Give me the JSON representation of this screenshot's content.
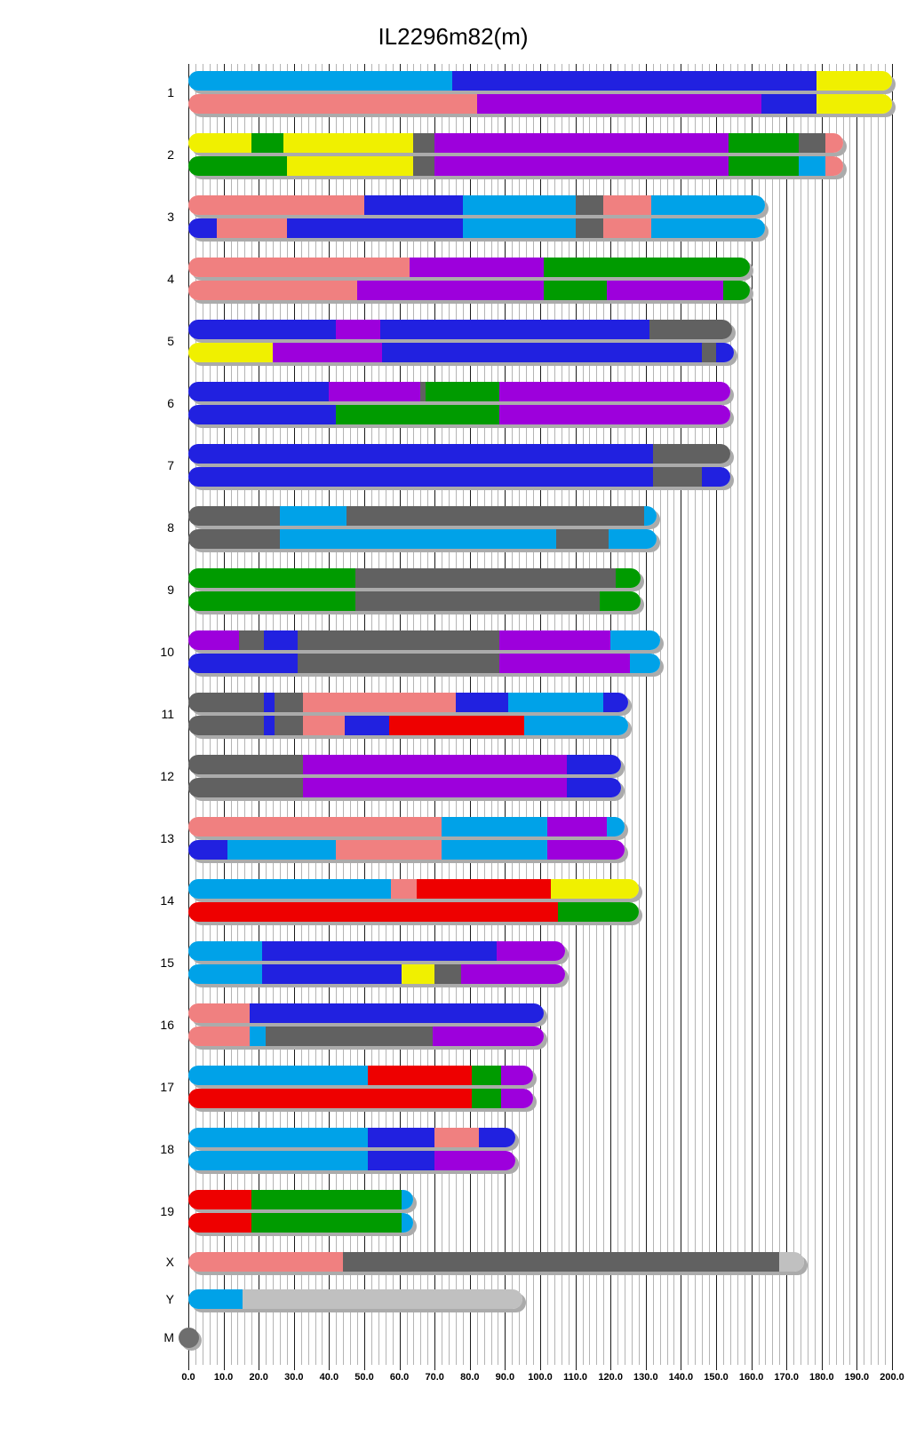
{
  "title": "IL2296m82(m)",
  "colors": {
    "cyan": "#00A2E8",
    "blue": "#2121E0",
    "purple": "#9D00DC",
    "green": "#009B00",
    "yellow": "#F0F000",
    "salmon": "#F08080",
    "red": "#EE0000",
    "gray": "#616161",
    "lightgray": "#C0C0C0",
    "mgray": "#6E6E6E",
    "gridline_minor": "#B4B4B4",
    "gridline_major": "#1A1A1A",
    "shadow": "#ABABAB"
  },
  "axis": {
    "min": 0,
    "max": 200,
    "major_step": 10,
    "minor_step": 2,
    "tick_labels": [
      "0.0",
      "10.0",
      "20.0",
      "30.0",
      "40.0",
      "50.0",
      "60.0",
      "70.0",
      "80.0",
      "90.0",
      "100.0",
      "110.0",
      "120.0",
      "130.0",
      "140.0",
      "150.0",
      "160.0",
      "170.0",
      "180.0",
      "190.0",
      "200.0"
    ]
  },
  "chart_data": {
    "type": "ideogram",
    "title": "IL2296m82(m)",
    "x_range": [
      0,
      200
    ],
    "segment_format": [
      "color",
      "from",
      "to"
    ],
    "chromosomes": [
      {
        "name": "1",
        "homologs": [
          [
            [
              "cyan",
              0,
              75
            ],
            [
              "blue",
              75,
              178.5
            ],
            [
              "yellow",
              178.5,
              200
            ]
          ],
          [
            [
              "salmon",
              0,
              82
            ],
            [
              "purple",
              82,
              163
            ],
            [
              "blue",
              163,
              178.5
            ],
            [
              "yellow",
              178.5,
              200
            ]
          ]
        ]
      },
      {
        "name": "2",
        "homologs": [
          [
            [
              "yellow",
              0,
              18
            ],
            [
              "green",
              18,
              27
            ],
            [
              "yellow",
              27,
              64
            ],
            [
              "gray",
              64,
              70
            ],
            [
              "purple",
              70,
              153.5
            ],
            [
              "green",
              153.5,
              173.5
            ],
            [
              "gray",
              173.5,
              181
            ],
            [
              "salmon",
              181,
              186
            ]
          ],
          [
            [
              "green",
              0,
              28
            ],
            [
              "yellow",
              28,
              64
            ],
            [
              "gray",
              64,
              70
            ],
            [
              "purple",
              70,
              153.5
            ],
            [
              "green",
              153.5,
              173.5
            ],
            [
              "cyan",
              173.5,
              181
            ],
            [
              "salmon",
              181,
              186
            ]
          ]
        ]
      },
      {
        "name": "3",
        "homologs": [
          [
            [
              "salmon",
              0,
              50
            ],
            [
              "blue",
              50,
              78
            ],
            [
              "cyan",
              78,
              110
            ],
            [
              "gray",
              110,
              118
            ],
            [
              "salmon",
              118,
              131.5
            ],
            [
              "cyan",
              131.5,
              164
            ]
          ],
          [
            [
              "blue",
              0,
              8
            ],
            [
              "salmon",
              8,
              28
            ],
            [
              "blue",
              28,
              78
            ],
            [
              "cyan",
              78,
              110
            ],
            [
              "gray",
              110,
              118
            ],
            [
              "salmon",
              118,
              131.5
            ],
            [
              "cyan",
              131.5,
              164
            ]
          ]
        ]
      },
      {
        "name": "4",
        "homologs": [
          [
            [
              "salmon",
              0,
              63
            ],
            [
              "purple",
              63,
              101
            ],
            [
              "green",
              101,
              159.5
            ]
          ],
          [
            [
              "salmon",
              0,
              48
            ],
            [
              "purple",
              48,
              101
            ],
            [
              "green",
              101,
              119
            ],
            [
              "purple",
              119,
              152
            ],
            [
              "green",
              152,
              159.5
            ]
          ]
        ]
      },
      {
        "name": "5",
        "homologs": [
          [
            [
              "blue",
              0,
              42
            ],
            [
              "purple",
              42,
              54.5
            ],
            [
              "blue",
              54.5,
              131
            ],
            [
              "gray",
              131,
              154.5
            ]
          ],
          [
            [
              "yellow",
              0,
              24
            ],
            [
              "purple",
              24,
              55
            ],
            [
              "blue",
              55,
              146
            ],
            [
              "gray",
              146,
              150
            ],
            [
              "blue",
              150,
              155
            ]
          ]
        ]
      },
      {
        "name": "6",
        "homologs": [
          [
            [
              "blue",
              0,
              40
            ],
            [
              "purple",
              40,
              66
            ],
            [
              "gray",
              66,
              67.5
            ],
            [
              "green",
              67.5,
              88.5
            ],
            [
              "purple",
              88.5,
              154
            ]
          ],
          [
            [
              "blue",
              0,
              42
            ],
            [
              "green",
              42,
              88.5
            ],
            [
              "purple",
              88.5,
              154
            ]
          ]
        ]
      },
      {
        "name": "7",
        "homologs": [
          [
            [
              "blue",
              0,
              132
            ],
            [
              "gray",
              132,
              154
            ]
          ],
          [
            [
              "blue",
              0,
              132
            ],
            [
              "gray",
              132,
              146
            ],
            [
              "blue",
              146,
              154
            ]
          ]
        ]
      },
      {
        "name": "8",
        "homologs": [
          [
            [
              "gray",
              0,
              26
            ],
            [
              "cyan",
              26,
              45
            ],
            [
              "gray",
              45,
              129.5
            ],
            [
              "cyan",
              129.5,
              133
            ]
          ],
          [
            [
              "gray",
              0,
              26
            ],
            [
              "cyan",
              26,
              104.5
            ],
            [
              "gray",
              104.5,
              119.5
            ],
            [
              "cyan",
              119.5,
              133
            ]
          ]
        ]
      },
      {
        "name": "9",
        "homologs": [
          [
            [
              "green",
              0,
              47.5
            ],
            [
              "gray",
              47.5,
              121.5
            ],
            [
              "green",
              121.5,
              128.5
            ]
          ],
          [
            [
              "green",
              0,
              47.5
            ],
            [
              "gray",
              47.5,
              117
            ],
            [
              "green",
              117,
              128.5
            ]
          ]
        ]
      },
      {
        "name": "10",
        "homologs": [
          [
            [
              "purple",
              0,
              14.5
            ],
            [
              "gray",
              14.5,
              21.5
            ],
            [
              "blue",
              21.5,
              31
            ],
            [
              "gray",
              31,
              88.5
            ],
            [
              "purple",
              88.5,
              120
            ],
            [
              "cyan",
              120,
              134
            ]
          ],
          [
            [
              "blue",
              0,
              31
            ],
            [
              "gray",
              31,
              88.5
            ],
            [
              "purple",
              88.5,
              125.5
            ],
            [
              "cyan",
              125.5,
              134
            ]
          ]
        ]
      },
      {
        "name": "11",
        "homologs": [
          [
            [
              "gray",
              0,
              21.5
            ],
            [
              "blue",
              21.5,
              24.5
            ],
            [
              "gray",
              24.5,
              32.5
            ],
            [
              "salmon",
              32.5,
              76
            ],
            [
              "blue",
              76,
              91
            ],
            [
              "cyan",
              91,
              118
            ],
            [
              "blue",
              118,
              125
            ]
          ],
          [
            [
              "gray",
              0,
              21.5
            ],
            [
              "blue",
              21.5,
              24.5
            ],
            [
              "gray",
              24.5,
              32.5
            ],
            [
              "salmon",
              32.5,
              44.5
            ],
            [
              "blue",
              44.5,
              57
            ],
            [
              "red",
              57,
              95.5
            ],
            [
              "cyan",
              95.5,
              125
            ]
          ]
        ]
      },
      {
        "name": "12",
        "homologs": [
          [
            [
              "gray",
              0,
              32.5
            ],
            [
              "purple",
              32.5,
              107.5
            ],
            [
              "blue",
              107.5,
              123
            ]
          ],
          [
            [
              "gray",
              0,
              32.5
            ],
            [
              "purple",
              32.5,
              107.5
            ],
            [
              "blue",
              107.5,
              123
            ]
          ]
        ]
      },
      {
        "name": "13",
        "homologs": [
          [
            [
              "salmon",
              0,
              72
            ],
            [
              "cyan",
              72,
              102
            ],
            [
              "purple",
              102,
              119
            ],
            [
              "cyan",
              119,
              124
            ]
          ],
          [
            [
              "blue",
              0,
              11
            ],
            [
              "cyan",
              11,
              42
            ],
            [
              "salmon",
              42,
              72
            ],
            [
              "cyan",
              72,
              102
            ],
            [
              "purple",
              102,
              124
            ]
          ]
        ]
      },
      {
        "name": "14",
        "homologs": [
          [
            [
              "cyan",
              0,
              57.5
            ],
            [
              "salmon",
              57.5,
              65
            ],
            [
              "red",
              65,
              103
            ],
            [
              "yellow",
              103,
              128
            ]
          ],
          [
            [
              "red",
              0,
              105
            ],
            [
              "green",
              105,
              128
            ]
          ]
        ]
      },
      {
        "name": "15",
        "homologs": [
          [
            [
              "cyan",
              0,
              21
            ],
            [
              "blue",
              21,
              87.5
            ],
            [
              "purple",
              87.5,
              107
            ]
          ],
          [
            [
              "cyan",
              0,
              21
            ],
            [
              "blue",
              21,
              60.5
            ],
            [
              "yellow",
              60.5,
              70
            ],
            [
              "gray",
              70,
              77.5
            ],
            [
              "purple",
              77.5,
              107
            ]
          ]
        ]
      },
      {
        "name": "16",
        "homologs": [
          [
            [
              "salmon",
              0,
              17.5
            ],
            [
              "blue",
              17.5,
              101
            ]
          ],
          [
            [
              "salmon",
              0,
              17.5
            ],
            [
              "cyan",
              17.5,
              22
            ],
            [
              "gray",
              22,
              69.5
            ],
            [
              "purple",
              69.5,
              101
            ]
          ]
        ]
      },
      {
        "name": "17",
        "homologs": [
          [
            [
              "cyan",
              0,
              51
            ],
            [
              "red",
              51,
              80.5
            ],
            [
              "green",
              80.5,
              89
            ],
            [
              "purple",
              89,
              98
            ]
          ],
          [
            [
              "red",
              0,
              80.5
            ],
            [
              "green",
              80.5,
              89
            ],
            [
              "purple",
              89,
              98
            ]
          ]
        ]
      },
      {
        "name": "18",
        "homologs": [
          [
            [
              "cyan",
              0,
              51
            ],
            [
              "blue",
              51,
              70
            ],
            [
              "salmon",
              70,
              82.5
            ],
            [
              "blue",
              82.5,
              93
            ]
          ],
          [
            [
              "cyan",
              0,
              51
            ],
            [
              "blue",
              51,
              70
            ],
            [
              "purple",
              70,
              93
            ]
          ]
        ]
      },
      {
        "name": "19",
        "homologs": [
          [
            [
              "red",
              0,
              18
            ],
            [
              "green",
              18,
              60.5
            ],
            [
              "cyan",
              60.5,
              64
            ]
          ],
          [
            [
              "red",
              0,
              18
            ],
            [
              "green",
              18,
              60.5
            ],
            [
              "cyan",
              60.5,
              64
            ]
          ]
        ]
      },
      {
        "name": "X",
        "homologs": [
          [
            [
              "salmon",
              0,
              44
            ],
            [
              "gray",
              44,
              168
            ],
            [
              "lightgray",
              168,
              175
            ]
          ]
        ]
      },
      {
        "name": "Y",
        "homologs": [
          [
            [
              "cyan",
              0,
              15.5
            ],
            [
              "lightgray",
              15.5,
              95
            ]
          ]
        ]
      },
      {
        "name": "M",
        "shape": "circle",
        "homologs": [
          [
            [
              "mgray",
              0,
              3
            ]
          ]
        ]
      }
    ]
  }
}
